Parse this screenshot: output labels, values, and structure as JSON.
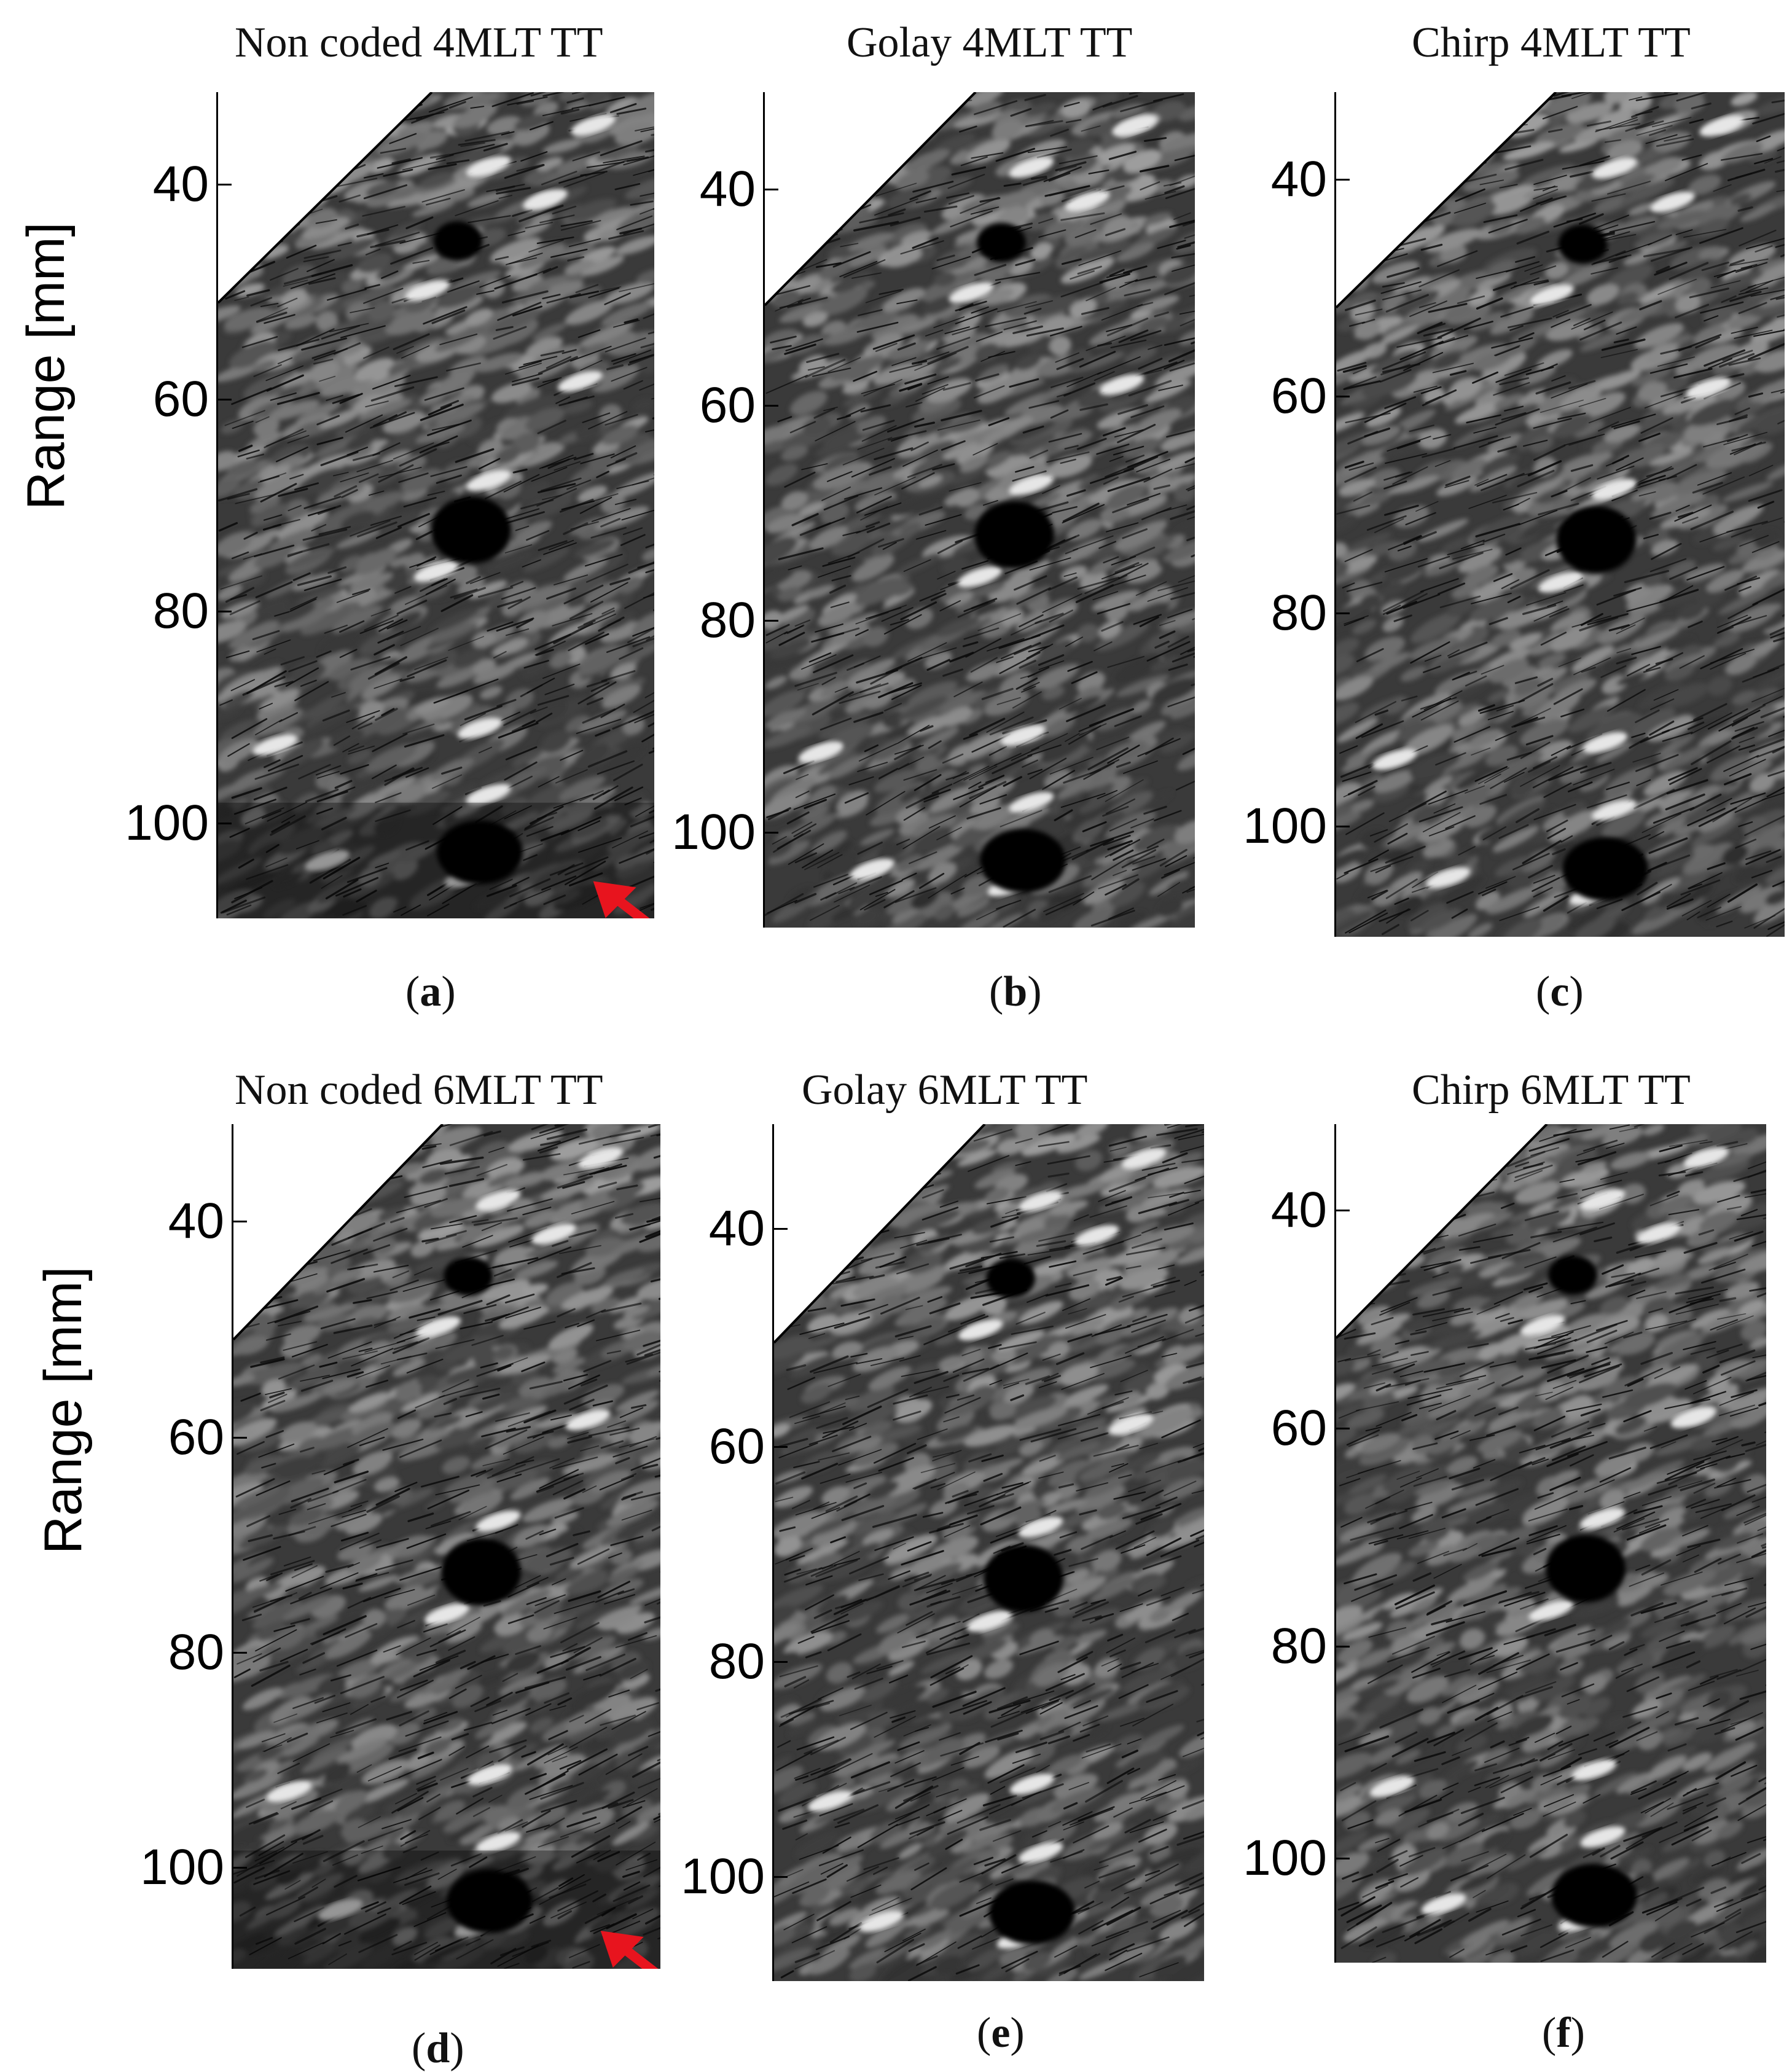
{
  "ylabel": "Range [mm]",
  "yticks": [
    "40",
    "60",
    "80",
    "100"
  ],
  "panels": [
    {
      "title": "Non coded 4MLT TT",
      "caption_letter": "a",
      "arrow": true,
      "artifact": true
    },
    {
      "title": "Golay 4MLT TT",
      "caption_letter": "b",
      "arrow": false,
      "artifact": false
    },
    {
      "title": "Chirp 4MLT TT",
      "caption_letter": "c",
      "arrow": false,
      "artifact": false
    },
    {
      "title": "Non coded 6MLT TT",
      "caption_letter": "d",
      "arrow": true,
      "artifact": true
    },
    {
      "title": "Golay 6MLT TT",
      "caption_letter": "e",
      "arrow": false,
      "artifact": false
    },
    {
      "title": "Chirp 6MLT TT",
      "caption_letter": "f",
      "arrow": false,
      "artifact": false
    }
  ],
  "colors": {
    "arrow": "#e8141e",
    "speckle_base": "#3a3a3a",
    "background": "#ffffff"
  }
}
